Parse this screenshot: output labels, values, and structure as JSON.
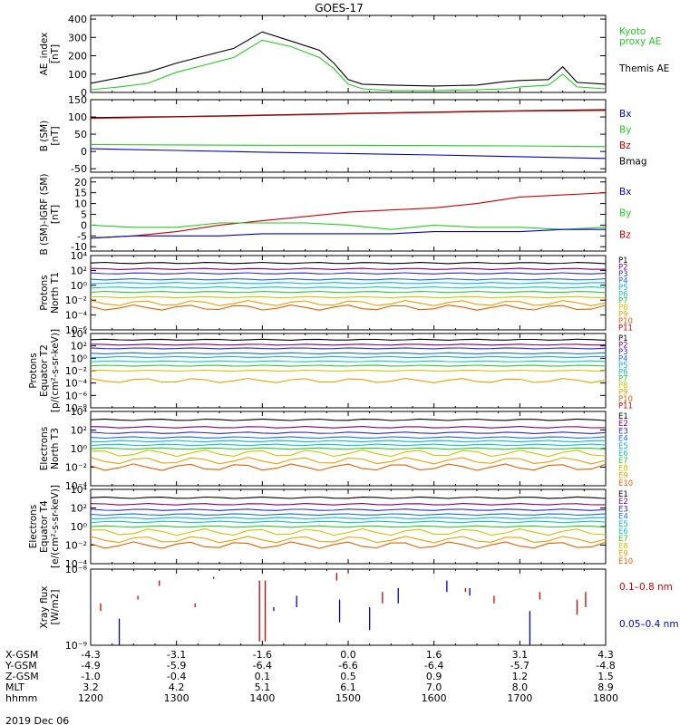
{
  "title": "GOES-17",
  "date_label": "2019 Dec 06",
  "hhmm_label": "hhmm",
  "colors": {
    "kyoto": "#22cc22",
    "themis": "#000000",
    "bx": "#0000cc",
    "by": "#22cc22",
    "bz": "#cc0000",
    "bmag": "#000000",
    "xray_long": "#cc0000",
    "xray_short": "#0000cc",
    "spec": [
      "#000000",
      "#7a007a",
      "#2a2ad0",
      "#1070e0",
      "#10b0e0",
      "#10c8b0",
      "#30c830",
      "#c8c800",
      "#e8a000",
      "#e06000",
      "#cc0000"
    ]
  },
  "chart_data": [
    {
      "id": "ae",
      "type": "line",
      "ylabel": [
        "AE_index",
        "[nT]"
      ],
      "ylim": [
        0,
        420
      ],
      "yticks": [
        0,
        100,
        200,
        300,
        400
      ],
      "ytick_labels": [
        "0",
        "100",
        "200",
        "300",
        "400"
      ],
      "legend": [
        {
          "label": "Kyoto",
          "color_key": "kyoto"
        },
        {
          "label": "proxy AE",
          "color_key": "kyoto"
        },
        {
          "label": "Themis AE",
          "color_key": "themis"
        }
      ],
      "series": [
        {
          "name": "Themis AE",
          "color_key": "themis",
          "x": [
            1200,
            1220,
            1240,
            1300,
            1320,
            1340,
            1400,
            1420,
            1440,
            1450,
            1500,
            1510,
            1530,
            1600,
            1630,
            1650,
            1700,
            1720,
            1730,
            1740,
            1800
          ],
          "y": [
            50,
            80,
            110,
            160,
            200,
            240,
            330,
            280,
            230,
            160,
            70,
            45,
            40,
            35,
            40,
            60,
            65,
            70,
            140,
            55,
            45
          ]
        },
        {
          "name": "Kyoto proxy AE",
          "color_key": "kyoto",
          "x": [
            1200,
            1220,
            1240,
            1300,
            1320,
            1340,
            1400,
            1420,
            1440,
            1450,
            1500,
            1510,
            1530,
            1600,
            1630,
            1650,
            1700,
            1720,
            1730,
            1740,
            1800
          ],
          "y": [
            15,
            30,
            50,
            110,
            150,
            190,
            285,
            250,
            190,
            130,
            45,
            20,
            10,
            10,
            15,
            20,
            30,
            40,
            100,
            30,
            20
          ]
        }
      ]
    },
    {
      "id": "b",
      "type": "line",
      "ylabel": [
        "B (SM)",
        "[nT]"
      ],
      "ylim": [
        -60,
        150
      ],
      "yticks": [
        -50,
        0,
        50,
        100,
        150
      ],
      "ytick_labels": [
        "-50",
        "0",
        "50",
        "100",
        "150"
      ],
      "legend": [
        {
          "label": "Bx",
          "color_key": "bx"
        },
        {
          "label": "By",
          "color_key": "by"
        },
        {
          "label": "Bz",
          "color_key": "bz"
        },
        {
          "label": "Bmag",
          "color_key": "bmag"
        }
      ],
      "series": [
        {
          "name": "Bmag",
          "color_key": "bmag",
          "x": [
            1200,
            1300,
            1400,
            1500,
            1600,
            1700,
            1800
          ],
          "y": [
            98,
            101,
            105,
            110,
            114,
            118,
            121
          ]
        },
        {
          "name": "Bz",
          "color_key": "bz",
          "x": [
            1200,
            1300,
            1400,
            1500,
            1600,
            1700,
            1800
          ],
          "y": [
            96,
            100,
            104,
            109,
            113,
            117,
            119
          ]
        },
        {
          "name": "By",
          "color_key": "by",
          "x": [
            1200,
            1300,
            1400,
            1500,
            1600,
            1700,
            1800
          ],
          "y": [
            20,
            19,
            18,
            18,
            17,
            16,
            14
          ]
        },
        {
          "name": "Bx",
          "color_key": "bx",
          "x": [
            1200,
            1300,
            1400,
            1500,
            1600,
            1700,
            1800
          ],
          "y": [
            8,
            3,
            -2,
            -6,
            -10,
            -15,
            -20
          ]
        }
      ]
    },
    {
      "id": "db",
      "type": "line",
      "ylabel": [
        "B (SM)-IGRF (SM)",
        "[nT]"
      ],
      "ylim": [
        -12,
        22
      ],
      "yticks": [
        -10,
        -5,
        0,
        5,
        10,
        15,
        20
      ],
      "ytick_labels": [
        "-10",
        "-5",
        "0",
        "5",
        "10",
        "15",
        "20"
      ],
      "legend": [
        {
          "label": "Bx",
          "color_key": "bx"
        },
        {
          "label": "By",
          "color_key": "by"
        },
        {
          "label": "Bz",
          "color_key": "bz"
        }
      ],
      "series": [
        {
          "name": "Bz",
          "color_key": "bz",
          "x": [
            1200,
            1230,
            1300,
            1330,
            1400,
            1430,
            1500,
            1530,
            1600,
            1630,
            1700,
            1730,
            1800
          ],
          "y": [
            -6,
            -5,
            -3,
            0,
            2,
            4,
            6,
            7,
            8,
            10,
            13,
            14,
            15
          ]
        },
        {
          "name": "By",
          "color_key": "by",
          "x": [
            1200,
            1230,
            1300,
            1330,
            1400,
            1430,
            1500,
            1530,
            1600,
            1630,
            1700,
            1730,
            1800
          ],
          "y": [
            0,
            -1,
            -1,
            1,
            1,
            1,
            0,
            -2,
            0,
            -1,
            -1,
            -2,
            -1
          ]
        },
        {
          "name": "Bx",
          "color_key": "bx",
          "x": [
            1200,
            1230,
            1300,
            1330,
            1400,
            1430,
            1500,
            1530,
            1600,
            1630,
            1700,
            1730,
            1800
          ],
          "y": [
            -6,
            -5,
            -5,
            -5,
            -4,
            -4,
            -4,
            -4,
            -3,
            -3,
            -3,
            -2,
            -2
          ]
        }
      ]
    },
    {
      "id": "pn",
      "type": "line",
      "log": true,
      "ylabel": [
        "Protons",
        "North T1"
      ],
      "ylim": [
        -6,
        4
      ],
      "yticks": [
        -6,
        -4,
        -2,
        0,
        2,
        4
      ],
      "ytick_labels": [
        "10⁻⁶",
        "10⁻⁴",
        "10⁻²",
        "10⁰",
        "10²",
        "10⁴"
      ],
      "channels": [
        "P1",
        "P2",
        "P3",
        "P4",
        "P5",
        "P6",
        "P7",
        "P8",
        "P9",
        "P10",
        "P11"
      ],
      "levels": [
        3.0,
        2.2,
        1.6,
        0.8,
        0.3,
        -0.3,
        -0.9,
        -1.6,
        -2.4,
        -3.0,
        null
      ]
    },
    {
      "id": "pe",
      "type": "line",
      "log": true,
      "ylabel": [
        "Protons",
        "Equator T2",
        "[p/(cm²-s-sr-keV)]"
      ],
      "ylim": [
        -8,
        4
      ],
      "yticks": [
        -8,
        -6,
        -4,
        -2,
        0,
        2,
        4
      ],
      "ytick_labels": [
        "10⁻⁸",
        "10⁻⁶",
        "10⁻⁴",
        "10⁻²",
        "10⁰",
        "10²",
        "10⁴"
      ],
      "channels": [
        "P1",
        "P2",
        "P3",
        "P4",
        "P5",
        "P6",
        "P7",
        "P8",
        "P9",
        "P10",
        "P11"
      ],
      "levels": [
        3.0,
        2.2,
        1.6,
        0.8,
        0.2,
        -0.5,
        -1.2,
        -2.0,
        -3.6,
        null,
        null
      ]
    },
    {
      "id": "en",
      "type": "line",
      "log": true,
      "ylabel": [
        "Electrons",
        "North T3"
      ],
      "ylim": [
        -4,
        4
      ],
      "yticks": [
        -4,
        -2,
        0,
        2,
        4
      ],
      "ytick_labels": [
        "10⁻⁴",
        "10⁻²",
        "10⁰",
        "10²",
        "10⁴"
      ],
      "channels": [
        "E1",
        "E2",
        "E3",
        "E4",
        "E5",
        "E6",
        "E7",
        "E8",
        "E9",
        "E10"
      ],
      "levels": [
        3.1,
        2.3,
        1.7,
        1.2,
        0.8,
        0.4,
        0.0,
        -0.5,
        -1.3,
        -2.0
      ]
    },
    {
      "id": "ee",
      "type": "line",
      "log": true,
      "ylabel": [
        "Electrons",
        "Equator T4",
        "[e/(cm²-s-sr-keV)]"
      ],
      "ylim": [
        -4,
        4
      ],
      "yticks": [
        -4,
        -2,
        0,
        2,
        4
      ],
      "ytick_labels": [
        "10⁻⁴",
        "10⁻²",
        "10⁰",
        "10²",
        "10⁴"
      ],
      "channels": [
        "E1",
        "E2",
        "E3",
        "E4",
        "E5",
        "E6",
        "E7",
        "E8",
        "E9",
        "E10"
      ],
      "levels": [
        3.1,
        2.4,
        1.8,
        1.3,
        0.9,
        0.5,
        0.0,
        -0.6,
        -1.4,
        -2.0
      ]
    },
    {
      "id": "xray",
      "type": "line",
      "log": true,
      "ylabel": [
        "Xray flux",
        "[W/m2]"
      ],
      "ylim": [
        -9,
        -8
      ],
      "yticks": [
        -9,
        -8
      ],
      "ytick_labels": [
        "10⁻⁹",
        "10⁻⁸"
      ],
      "legend": [
        {
          "label": "0.1–0.8 nm",
          "color_key": "xray_long"
        },
        {
          "label": "0.05–0.4 nm",
          "color_key": "xray_short"
        }
      ],
      "spikes_long": [
        [
          1207,
          -8.45,
          -8.55
        ],
        [
          1233,
          -8.35,
          -8.4
        ],
        [
          1248,
          -8.15,
          -8.22
        ],
        [
          1313,
          -8.45,
          -8.5
        ],
        [
          1326,
          -8.1,
          -8.13
        ],
        [
          1358,
          -8.15,
          -8.95
        ],
        [
          1362,
          -8.15,
          -8.95
        ],
        [
          1452,
          -8.05,
          -8.15
        ],
        [
          1524,
          -8.3,
          -8.45
        ],
        [
          1622,
          -8.25,
          -8.3
        ],
        [
          1642,
          -8.35,
          -8.45
        ],
        [
          1714,
          -8.3,
          -8.4
        ],
        [
          1740,
          -8.4,
          -8.6
        ],
        [
          1746,
          -8.3,
          -8.5
        ]
      ],
      "spikes_short": [
        [
          1220,
          -8.65,
          -9.0
        ],
        [
          1408,
          -8.5,
          -8.55
        ],
        [
          1424,
          -8.35,
          -8.5
        ],
        [
          1454,
          -8.4,
          -8.7
        ],
        [
          1515,
          -8.5,
          -8.8
        ],
        [
          1535,
          -8.25,
          -8.45
        ],
        [
          1609,
          -8.15,
          -8.3
        ],
        [
          1625,
          -8.25,
          -8.35
        ],
        [
          1707,
          -8.55,
          -9.0
        ]
      ]
    }
  ],
  "x_axis": {
    "ticks": [
      1200,
      1300,
      1400,
      1500,
      1600,
      1700,
      1800
    ],
    "rows": [
      {
        "label": "X-GSM",
        "values": [
          "-4.3",
          "-3.1",
          "-1.6",
          "0.0",
          "1.6",
          "3.1",
          "4.3"
        ]
      },
      {
        "label": "Y-GSM",
        "values": [
          "-4.9",
          "-5.9",
          "-6.4",
          "-6.6",
          "-6.4",
          "-5.7",
          "-4.8"
        ]
      },
      {
        "label": "Z-GSM",
        "values": [
          "-1.0",
          "-0.4",
          "0.1",
          "0.5",
          "0.9",
          "1.2",
          "1.5"
        ]
      },
      {
        "label": "MLT",
        "values": [
          "3.2",
          "4.2",
          "5.1",
          "6.1",
          "7.0",
          "8.0",
          "8.9"
        ]
      },
      {
        "label": "hhmm",
        "values": [
          "1200",
          "1300",
          "1400",
          "1500",
          "1600",
          "1700",
          "1800"
        ]
      }
    ]
  }
}
